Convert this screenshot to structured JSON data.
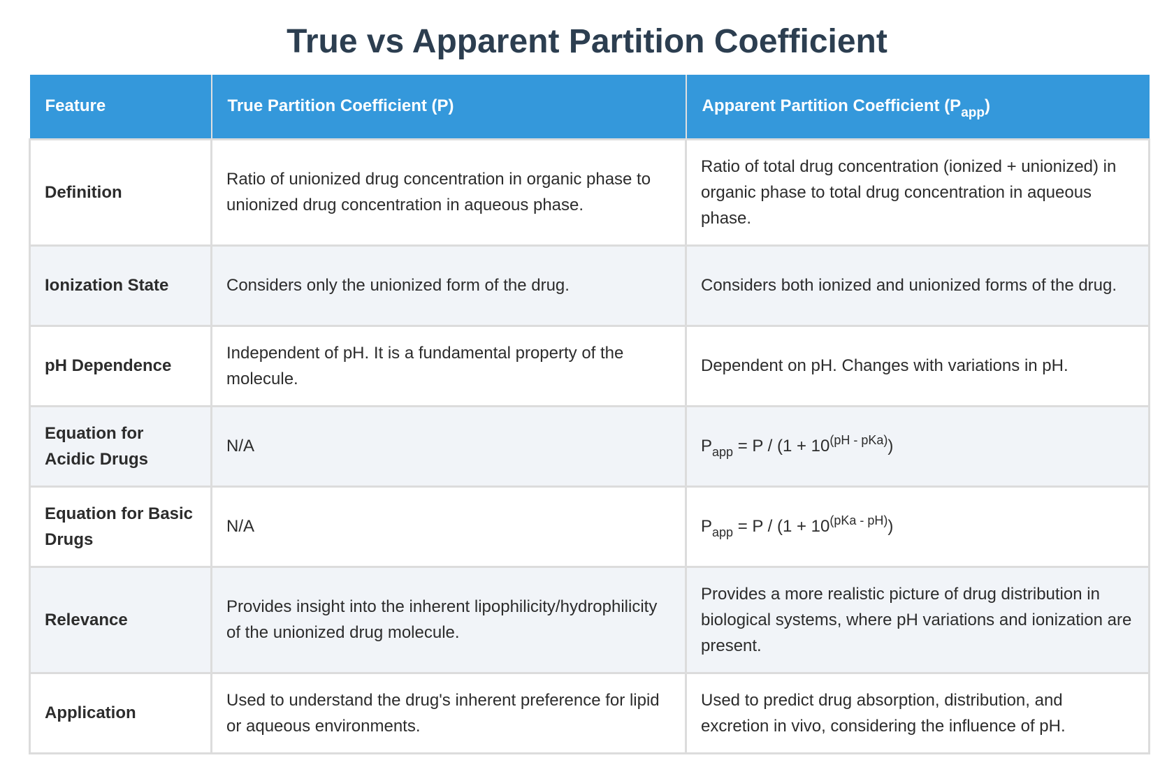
{
  "title": "True vs Apparent Partition Coefficient",
  "header": {
    "feature": "Feature",
    "true_p": "True Partition Coefficient (P)",
    "app_p_prefix": "Apparent Partition Coefficient (P",
    "app_p_sub": "app",
    "app_p_suffix": ")"
  },
  "rows": [
    {
      "feature": "Definition",
      "true_p": "Ratio of unionized drug concentration in organic phase to unionized drug concentration in aqueous phase.",
      "app_p": "Ratio of total drug concentration (ionized + unionized) in organic phase to total drug concentration in aqueous phase."
    },
    {
      "feature": "Ionization State",
      "true_p": "Considers only the unionized form of the drug.",
      "app_p": "Considers both ionized and unionized forms of the drug."
    },
    {
      "feature": "pH Dependence",
      "true_p": "Independent of pH. It is a fundamental property of the molecule.",
      "app_p": "Dependent on pH. Changes with variations in pH."
    },
    {
      "feature": "Equation for Acidic Drugs",
      "true_p": "N/A",
      "app_p_eq": {
        "base": "P",
        "sub": "app",
        "middle": " = P / (1 + 10",
        "sup": "(pH - pKa)",
        "end": ")"
      }
    },
    {
      "feature": "Equation for Basic Drugs",
      "true_p": "N/A",
      "app_p_eq": {
        "base": "P",
        "sub": "app",
        "middle": " = P / (1 + 10",
        "sup": "(pKa - pH)",
        "end": ")"
      }
    },
    {
      "feature": "Relevance",
      "true_p": "Provides insight into the inherent lipophilicity/hydrophilicity of the unionized drug molecule.",
      "app_p": "Provides a more realistic picture of drug distribution in biological systems, where pH variations and ionization are present."
    },
    {
      "feature": "Application",
      "true_p": "Used to understand the drug's inherent preference for lipid or aqueous environments.",
      "app_p": "Used to predict drug absorption, distribution, and excretion in vivo, considering the influence of pH."
    }
  ],
  "colors": {
    "header_bg": "#3498db",
    "title": "#2c3e50",
    "row_alt": "#f1f4f8"
  }
}
